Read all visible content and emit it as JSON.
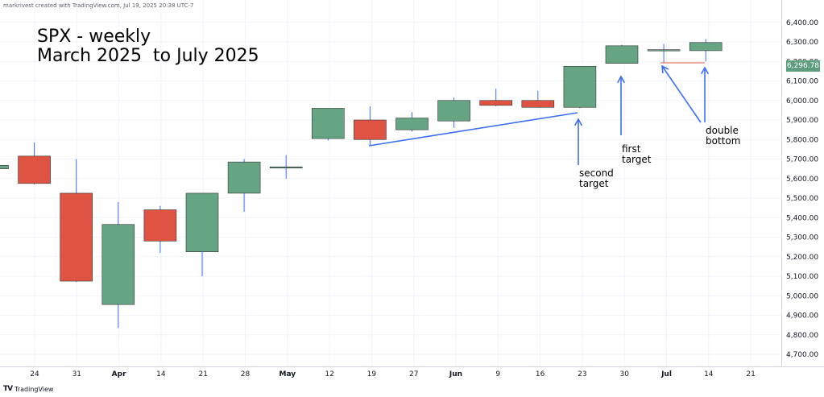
{
  "header": {
    "byline": "markrivest created with TradingView.com, Jul 19, 2025 20:38 UTC-7"
  },
  "footer": {
    "logo_mark": "TV",
    "logo_text": "TradingView"
  },
  "chart_title": {
    "line1": "SPX - weekly",
    "line2": "March 2025  to July 2025"
  },
  "annotations": {
    "second_target": "second\ntarget",
    "first_target": "first\ntarget",
    "double_bottom": "double\nbottom"
  },
  "last_price": "6,296.78",
  "colors": {
    "up": "#66a583",
    "down": "#de5341",
    "arrow": "#3b6ff5",
    "grid": "#f0f3fa",
    "axis_text": "#131722"
  },
  "chart_data": {
    "type": "candlestick",
    "title": "SPX - weekly",
    "subtitle": "March 2025  to July 2025",
    "ylim": [
      4630,
      6460
    ],
    "y_ticks": [
      "4,700.00",
      "4,800.00",
      "4,900.00",
      "5,000.00",
      "5,100.00",
      "5,200.00",
      "5,300.00",
      "5,400.00",
      "5,500.00",
      "5,600.00",
      "5,700.00",
      "5,800.00",
      "5,900.00",
      "6,000.00",
      "6,100.00",
      "6,200.00",
      "6,300.00",
      "6,400.00"
    ],
    "x_ticks": [
      "24",
      "31",
      "Apr",
      "14",
      "21",
      "28",
      "May",
      "12",
      "19",
      "27",
      "Jun",
      "9",
      "16",
      "23",
      "30",
      "Jul",
      "14",
      "21"
    ],
    "candles": [
      {
        "week": "Mar 17",
        "open": 5650,
        "high": 5670,
        "low": 5630,
        "close": 5668
      },
      {
        "week": "Mar 24",
        "open": 5715,
        "high": 5785,
        "low": 5570,
        "close": 5575
      },
      {
        "week": "Mar 31",
        "open": 5525,
        "high": 5700,
        "low": 5070,
        "close": 5075
      },
      {
        "week": "Apr 7",
        "open": 4955,
        "high": 5480,
        "low": 4835,
        "close": 5365
      },
      {
        "week": "Apr 14",
        "open": 5440,
        "high": 5460,
        "low": 5220,
        "close": 5280
      },
      {
        "week": "Apr 21",
        "open": 5225,
        "high": 5525,
        "low": 5100,
        "close": 5525
      },
      {
        "week": "Apr 28",
        "open": 5525,
        "high": 5700,
        "low": 5430,
        "close": 5685
      },
      {
        "week": "May 5",
        "open": 5655,
        "high": 5720,
        "low": 5600,
        "close": 5660
      },
      {
        "week": "May 12",
        "open": 5805,
        "high": 5960,
        "low": 5795,
        "close": 5960
      },
      {
        "week": "May 19",
        "open": 5900,
        "high": 5970,
        "low": 5770,
        "close": 5800
      },
      {
        "week": "May 26",
        "open": 5850,
        "high": 5940,
        "low": 5840,
        "close": 5910
      },
      {
        "week": "Jun 2",
        "open": 5895,
        "high": 6015,
        "low": 5860,
        "close": 6000
      },
      {
        "week": "Jun 9",
        "open": 6000,
        "high": 6060,
        "low": 5970,
        "close": 5975
      },
      {
        "week": "Jun 16",
        "open": 6000,
        "high": 6050,
        "low": 5965,
        "close": 5965
      },
      {
        "week": "Jun 23",
        "open": 5965,
        "high": 6175,
        "low": 5960,
        "close": 6175
      },
      {
        "week": "Jun 30",
        "open": 6190,
        "high": 6285,
        "low": 6190,
        "close": 6280
      },
      {
        "week": "Jul 7",
        "open": 6255,
        "high": 6290,
        "low": 6195,
        "close": 6260
      },
      {
        "week": "Jul 14",
        "open": 6255,
        "high": 6315,
        "low": 6200,
        "close": 6296.78
      }
    ]
  }
}
